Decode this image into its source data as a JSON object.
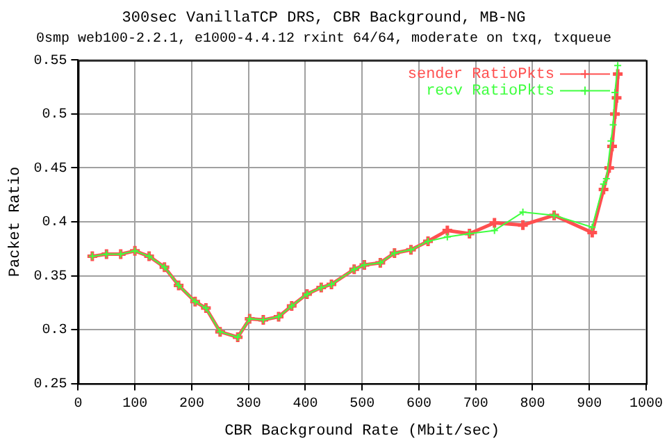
{
  "chart_data": {
    "type": "line",
    "title": "300sec VanillaTCP DRS, CBR Background, MB-NG",
    "subtitle": "0smp web100-2.2.1, e1000-4.4.12 rxint 64/64, moderate on txq, txqueue",
    "xlabel": "CBR Background Rate (Mbit/sec)",
    "ylabel": "Packet Ratio",
    "xlim": [
      0,
      1000
    ],
    "xticks": [
      0,
      100,
      200,
      300,
      400,
      500,
      600,
      700,
      800,
      900,
      1000
    ],
    "ylim": [
      0.25,
      0.55
    ],
    "yticks": [
      0.25,
      0.3,
      0.35,
      0.4,
      0.45,
      0.5,
      0.55
    ],
    "grid": true,
    "legend": "top right",
    "marker": "cross",
    "line_style": "solid",
    "series": [
      {
        "name": "sender RatioPkts",
        "color": "#ff5050",
        "x": [
          25,
          50,
          75,
          100,
          125,
          152,
          177,
          206,
          225,
          250,
          281,
          302,
          326,
          353,
          376,
          403,
          428,
          446,
          486,
          504,
          532,
          557,
          586,
          616,
          650,
          689,
          733,
          783,
          838,
          905,
          925,
          935,
          940,
          945,
          948,
          950
        ],
        "values": [
          0.368,
          0.37,
          0.37,
          0.373,
          0.368,
          0.358,
          0.341,
          0.326,
          0.32,
          0.298,
          0.293,
          0.31,
          0.309,
          0.312,
          0.322,
          0.333,
          0.339,
          0.342,
          0.356,
          0.36,
          0.362,
          0.371,
          0.374,
          0.382,
          0.392,
          0.389,
          0.399,
          0.397,
          0.406,
          0.39,
          0.43,
          0.45,
          0.47,
          0.5,
          0.515,
          0.537
        ]
      },
      {
        "name": "recv RatioPkts",
        "color": "#40ff40",
        "x": [
          25,
          50,
          75,
          100,
          125,
          152,
          177,
          206,
          225,
          250,
          281,
          302,
          326,
          353,
          376,
          403,
          428,
          446,
          486,
          504,
          532,
          557,
          586,
          616,
          650,
          689,
          733,
          783,
          838,
          905,
          925,
          930,
          938,
          942,
          945,
          950
        ],
        "values": [
          0.368,
          0.37,
          0.37,
          0.373,
          0.368,
          0.358,
          0.341,
          0.326,
          0.32,
          0.298,
          0.293,
          0.31,
          0.309,
          0.312,
          0.322,
          0.333,
          0.339,
          0.342,
          0.356,
          0.36,
          0.362,
          0.371,
          0.374,
          0.382,
          0.386,
          0.389,
          0.392,
          0.409,
          0.406,
          0.395,
          0.435,
          0.44,
          0.475,
          0.49,
          0.52,
          0.545
        ]
      }
    ]
  }
}
